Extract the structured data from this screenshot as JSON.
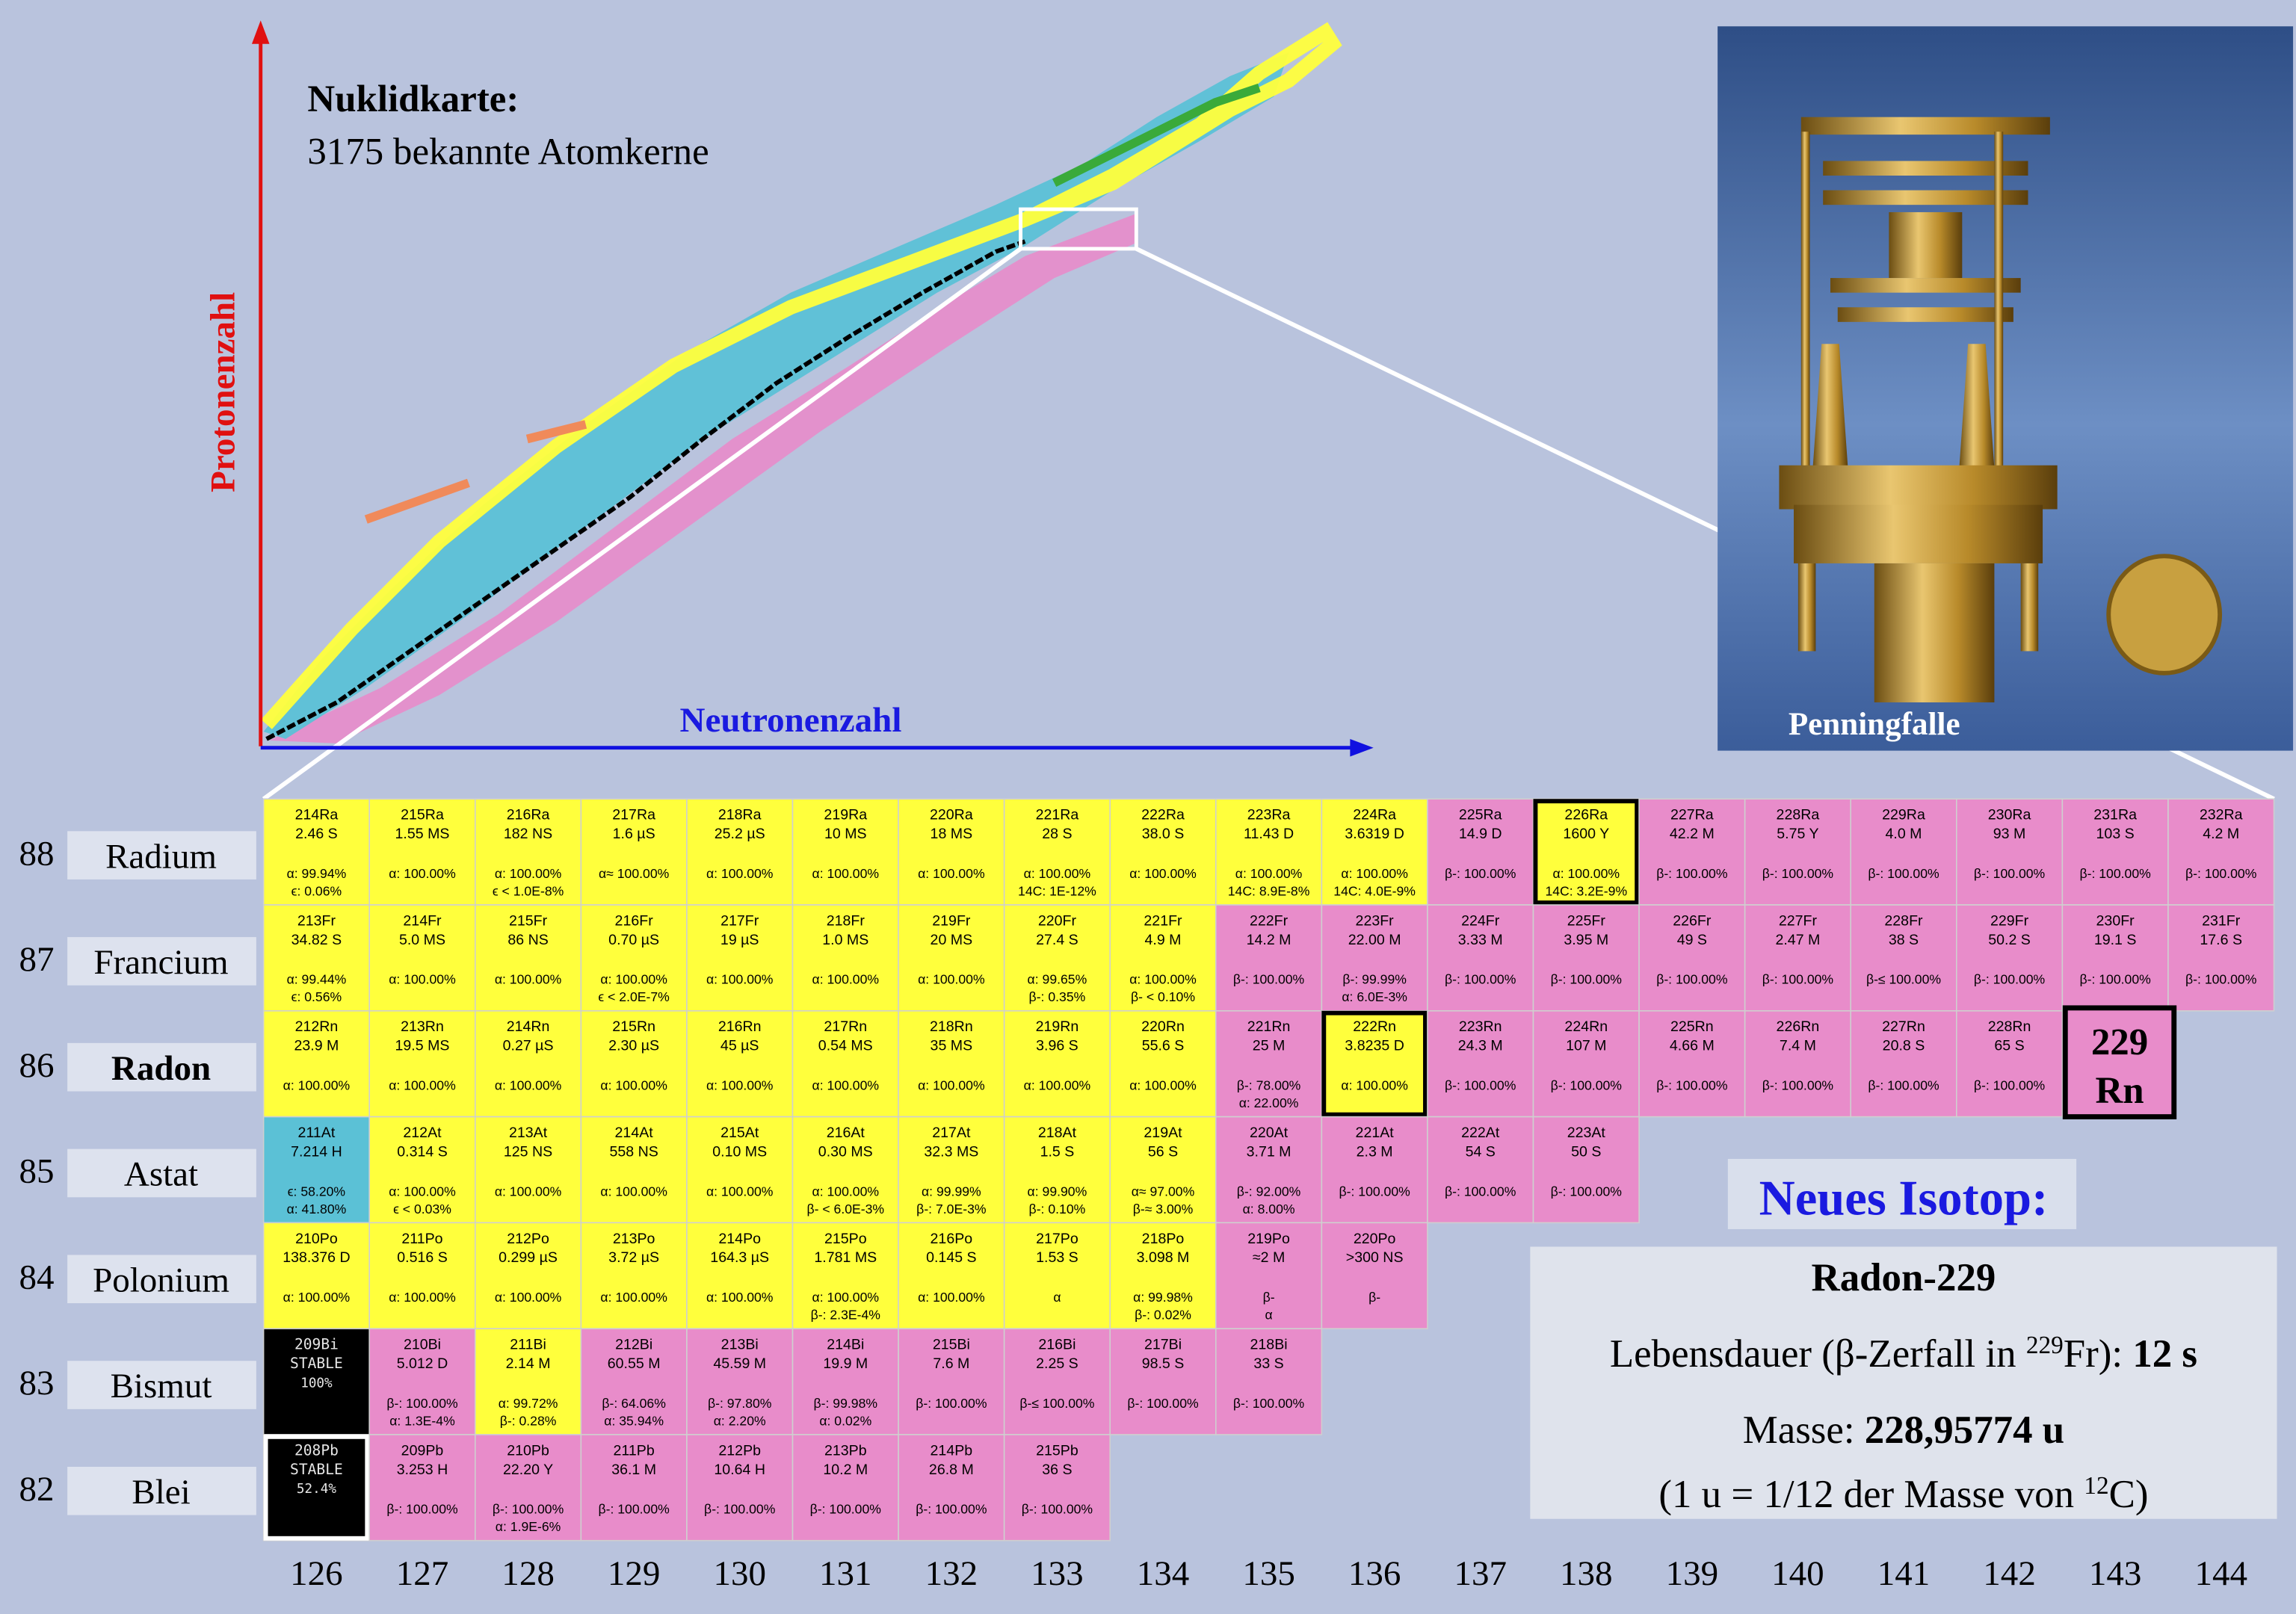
{
  "title": "Nuklidkarte:",
  "subtitle": "3175 bekannte Atomkerne",
  "y_axis_label": "Protonenzahl",
  "x_axis_label": "Neutronenzahl",
  "photo_label": "Penningfalle",
  "n_labels": [
    126,
    127,
    128,
    129,
    130,
    131,
    132,
    133,
    134,
    135,
    136,
    137,
    138,
    139,
    140,
    141,
    142,
    143,
    144
  ],
  "rows": [
    {
      "z": 88,
      "element": "Radium",
      "bold": false,
      "cells": [
        {
          "name": "214Ra",
          "halflife": "2.46 S",
          "decay": [
            "α: 99.94%",
            "ϵ: 0.06%"
          ],
          "color": "#ffff3c"
        },
        {
          "name": "215Ra",
          "halflife": "1.55 MS",
          "decay": [
            "α: 100.00%"
          ],
          "color": "#ffff3c"
        },
        {
          "name": "216Ra",
          "halflife": "182 NS",
          "decay": [
            "α: 100.00%",
            "ϵ < 1.0E-8%"
          ],
          "color": "#ffff3c"
        },
        {
          "name": "217Ra",
          "halflife": "1.6 µS",
          "decay": [
            "α≈ 100.00%"
          ],
          "color": "#ffff3c"
        },
        {
          "name": "218Ra",
          "halflife": "25.2 µS",
          "decay": [
            "α: 100.00%"
          ],
          "color": "#ffff3c"
        },
        {
          "name": "219Ra",
          "halflife": "10 MS",
          "decay": [
            "α: 100.00%"
          ],
          "color": "#ffff3c"
        },
        {
          "name": "220Ra",
          "halflife": "18 MS",
          "decay": [
            "α: 100.00%"
          ],
          "color": "#ffff3c"
        },
        {
          "name": "221Ra",
          "halflife": "28 S",
          "decay": [
            "α: 100.00%",
            "14C: 1E-12%"
          ],
          "color": "#ffff3c"
        },
        {
          "name": "222Ra",
          "halflife": "38.0 S",
          "decay": [
            "α: 100.00%"
          ],
          "color": "#ffff3c"
        },
        {
          "name": "223Ra",
          "halflife": "11.43 D",
          "decay": [
            "α: 100.00%",
            "14C: 8.9E-8%"
          ],
          "color": "#ffff3c"
        },
        {
          "name": "224Ra",
          "halflife": "3.6319 D",
          "decay": [
            "α: 100.00%",
            "14C: 4.0E-9%"
          ],
          "color": "#ffff3c"
        },
        {
          "name": "225Ra",
          "halflife": "14.9 D",
          "decay": [
            "β-: 100.00%"
          ],
          "color": "#e88cca"
        },
        {
          "name": "226Ra",
          "halflife": "1600 Y",
          "decay": [
            "α: 100.00%",
            "14C: 3.2E-9%"
          ],
          "color": "#ffff3c",
          "frame": "#000000"
        },
        {
          "name": "227Ra",
          "halflife": "42.2 M",
          "decay": [
            "β-: 100.00%"
          ],
          "color": "#e88cca"
        },
        {
          "name": "228Ra",
          "halflife": "5.75 Y",
          "decay": [
            "β-: 100.00%"
          ],
          "color": "#e88cca"
        },
        {
          "name": "229Ra",
          "halflife": "4.0 M",
          "decay": [
            "β-: 100.00%"
          ],
          "color": "#e88cca"
        },
        {
          "name": "230Ra",
          "halflife": "93 M",
          "decay": [
            "β-: 100.00%"
          ],
          "color": "#e88cca"
        },
        {
          "name": "231Ra",
          "halflife": "103 S",
          "decay": [
            "β-: 100.00%"
          ],
          "color": "#e88cca"
        },
        {
          "name": "232Ra",
          "halflife": "4.2 M",
          "decay": [
            "β-: 100.00%"
          ],
          "color": "#e88cca"
        }
      ]
    },
    {
      "z": 87,
      "element": "Francium",
      "bold": false,
      "cells": [
        {
          "name": "213Fr",
          "halflife": "34.82 S",
          "decay": [
            "α: 99.44%",
            "ϵ: 0.56%"
          ],
          "color": "#ffff3c"
        },
        {
          "name": "214Fr",
          "halflife": "5.0 MS",
          "decay": [
            "α: 100.00%"
          ],
          "color": "#ffff3c"
        },
        {
          "name": "215Fr",
          "halflife": "86 NS",
          "decay": [
            "α: 100.00%"
          ],
          "color": "#ffff3c"
        },
        {
          "name": "216Fr",
          "halflife": "0.70 µS",
          "decay": [
            "α: 100.00%",
            "ϵ < 2.0E-7%"
          ],
          "color": "#ffff3c"
        },
        {
          "name": "217Fr",
          "halflife": "19 µS",
          "decay": [
            "α: 100.00%"
          ],
          "color": "#ffff3c"
        },
        {
          "name": "218Fr",
          "halflife": "1.0 MS",
          "decay": [
            "α: 100.00%"
          ],
          "color": "#ffff3c"
        },
        {
          "name": "219Fr",
          "halflife": "20 MS",
          "decay": [
            "α: 100.00%"
          ],
          "color": "#ffff3c"
        },
        {
          "name": "220Fr",
          "halflife": "27.4 S",
          "decay": [
            "α: 99.65%",
            "β-: 0.35%"
          ],
          "color": "#ffff3c"
        },
        {
          "name": "221Fr",
          "halflife": "4.9 M",
          "decay": [
            "α: 100.00%",
            "β- < 0.10%"
          ],
          "color": "#ffff3c"
        },
        {
          "name": "222Fr",
          "halflife": "14.2 M",
          "decay": [
            "β-: 100.00%"
          ],
          "color": "#e88cca"
        },
        {
          "name": "223Fr",
          "halflife": "22.00 M",
          "decay": [
            "β-: 99.99%",
            "α: 6.0E-3%"
          ],
          "color": "#e88cca"
        },
        {
          "name": "224Fr",
          "halflife": "3.33 M",
          "decay": [
            "β-: 100.00%"
          ],
          "color": "#e88cca"
        },
        {
          "name": "225Fr",
          "halflife": "3.95 M",
          "decay": [
            "β-: 100.00%"
          ],
          "color": "#e88cca"
        },
        {
          "name": "226Fr",
          "halflife": "49 S",
          "decay": [
            "β-: 100.00%"
          ],
          "color": "#e88cca"
        },
        {
          "name": "227Fr",
          "halflife": "2.47 M",
          "decay": [
            "β-: 100.00%"
          ],
          "color": "#e88cca"
        },
        {
          "name": "228Fr",
          "halflife": "38 S",
          "decay": [
            "β-≤ 100.00%"
          ],
          "color": "#e88cca"
        },
        {
          "name": "229Fr",
          "halflife": "50.2 S",
          "decay": [
            "β-: 100.00%"
          ],
          "color": "#e88cca"
        },
        {
          "name": "230Fr",
          "halflife": "19.1 S",
          "decay": [
            "β-: 100.00%"
          ],
          "color": "#e88cca"
        },
        {
          "name": "231Fr",
          "halflife": "17.6 S",
          "decay": [
            "β-: 100.00%"
          ],
          "color": "#e88cca"
        }
      ]
    },
    {
      "z": 86,
      "element": "Radon",
      "bold": true,
      "cells": [
        {
          "name": "212Rn",
          "halflife": "23.9 M",
          "decay": [
            "α: 100.00%"
          ],
          "color": "#ffff3c"
        },
        {
          "name": "213Rn",
          "halflife": "19.5 MS",
          "decay": [
            "α: 100.00%"
          ],
          "color": "#ffff3c"
        },
        {
          "name": "214Rn",
          "halflife": "0.27 µS",
          "decay": [
            "α: 100.00%"
          ],
          "color": "#ffff3c"
        },
        {
          "name": "215Rn",
          "halflife": "2.30 µS",
          "decay": [
            "α: 100.00%"
          ],
          "color": "#ffff3c"
        },
        {
          "name": "216Rn",
          "halflife": "45 µS",
          "decay": [
            "α: 100.00%"
          ],
          "color": "#ffff3c"
        },
        {
          "name": "217Rn",
          "halflife": "0.54 MS",
          "decay": [
            "α: 100.00%"
          ],
          "color": "#ffff3c"
        },
        {
          "name": "218Rn",
          "halflife": "35 MS",
          "decay": [
            "α: 100.00%"
          ],
          "color": "#ffff3c"
        },
        {
          "name": "219Rn",
          "halflife": "3.96 S",
          "decay": [
            "α: 100.00%"
          ],
          "color": "#ffff3c"
        },
        {
          "name": "220Rn",
          "halflife": "55.6 S",
          "decay": [
            "α: 100.00%"
          ],
          "color": "#ffff3c"
        },
        {
          "name": "221Rn",
          "halflife": "25 M",
          "decay": [
            "β-: 78.00%",
            "α: 22.00%"
          ],
          "color": "#e88cca"
        },
        {
          "name": "222Rn",
          "halflife": "3.8235 D",
          "decay": [
            "α: 100.00%"
          ],
          "color": "#ffff3c",
          "frame": "#000000"
        },
        {
          "name": "223Rn",
          "halflife": "24.3 M",
          "decay": [
            "β-: 100.00%"
          ],
          "color": "#e88cca"
        },
        {
          "name": "224Rn",
          "halflife": "107 M",
          "decay": [
            "β-: 100.00%"
          ],
          "color": "#e88cca"
        },
        {
          "name": "225Rn",
          "halflife": "4.66 M",
          "decay": [
            "β-: 100.00%"
          ],
          "color": "#e88cca"
        },
        {
          "name": "226Rn",
          "halflife": "7.4 M",
          "decay": [
            "β-: 100.00%"
          ],
          "color": "#e88cca"
        },
        {
          "name": "227Rn",
          "halflife": "20.8 S",
          "decay": [
            "β-: 100.00%"
          ],
          "color": "#e88cca"
        },
        {
          "name": "228Rn",
          "halflife": "65 S",
          "decay": [
            "β-: 100.00%"
          ],
          "color": "#e88cca"
        },
        {
          "name": "229",
          "symbol": "Rn",
          "color": "#e88cca",
          "frame": "#000000"
        }
      ]
    },
    {
      "z": 85,
      "element": "Astat",
      "bold": false,
      "cells": [
        {
          "name": "211At",
          "halflife": "7.214 H",
          "decay": [
            "ϵ: 58.20%",
            "α: 41.80%"
          ],
          "color": "#5bc1d6"
        },
        {
          "name": "212At",
          "halflife": "0.314 S",
          "decay": [
            "α: 100.00%",
            "ϵ < 0.03%"
          ],
          "color": "#ffff3c"
        },
        {
          "name": "213At",
          "halflife": "125 NS",
          "decay": [
            "α: 100.00%"
          ],
          "color": "#ffff3c"
        },
        {
          "name": "214At",
          "halflife": "558 NS",
          "decay": [
            "α: 100.00%"
          ],
          "color": "#ffff3c"
        },
        {
          "name": "215At",
          "halflife": "0.10 MS",
          "decay": [
            "α: 100.00%"
          ],
          "color": "#ffff3c"
        },
        {
          "name": "216At",
          "halflife": "0.30 MS",
          "decay": [
            "α: 100.00%",
            "β- < 6.0E-3%"
          ],
          "color": "#ffff3c"
        },
        {
          "name": "217At",
          "halflife": "32.3 MS",
          "decay": [
            "α: 99.99%",
            "β-: 7.0E-3%"
          ],
          "color": "#ffff3c"
        },
        {
          "name": "218At",
          "halflife": "1.5 S",
          "decay": [
            "α: 99.90%",
            "β-: 0.10%"
          ],
          "color": "#ffff3c"
        },
        {
          "name": "219At",
          "halflife": "56 S",
          "decay": [
            "α≈ 97.00%",
            "β-≈ 3.00%"
          ],
          "color": "#ffff3c"
        },
        {
          "name": "220At",
          "halflife": "3.71 M",
          "decay": [
            "β-: 92.00%",
            "α: 8.00%"
          ],
          "color": "#e88cca"
        },
        {
          "name": "221At",
          "halflife": "2.3 M",
          "decay": [
            "β-: 100.00%"
          ],
          "color": "#e88cca"
        },
        {
          "name": "222At",
          "halflife": "54 S",
          "decay": [
            "β-: 100.00%"
          ],
          "color": "#e88cca"
        },
        {
          "name": "223At",
          "halflife": "50 S",
          "decay": [
            "β-: 100.00%"
          ],
          "color": "#e88cca"
        }
      ]
    },
    {
      "z": 84,
      "element": "Polonium",
      "bold": false,
      "cells": [
        {
          "name": "210Po",
          "halflife": "138.376 D",
          "decay": [
            "α: 100.00%"
          ],
          "color": "#ffff3c"
        },
        {
          "name": "211Po",
          "halflife": "0.516 S",
          "decay": [
            "α: 100.00%"
          ],
          "color": "#ffff3c"
        },
        {
          "name": "212Po",
          "halflife": "0.299 µS",
          "decay": [
            "α: 100.00%"
          ],
          "color": "#ffff3c"
        },
        {
          "name": "213Po",
          "halflife": "3.72 µS",
          "decay": [
            "α: 100.00%"
          ],
          "color": "#ffff3c"
        },
        {
          "name": "214Po",
          "halflife": "164.3 µS",
          "decay": [
            "α: 100.00%"
          ],
          "color": "#ffff3c"
        },
        {
          "name": "215Po",
          "halflife": "1.781 MS",
          "decay": [
            "α: 100.00%",
            "β-: 2.3E-4%"
          ],
          "color": "#ffff3c"
        },
        {
          "name": "216Po",
          "halflife": "0.145 S",
          "decay": [
            "α: 100.00%"
          ],
          "color": "#ffff3c"
        },
        {
          "name": "217Po",
          "halflife": "1.53 S",
          "decay": [
            "α"
          ],
          "color": "#ffff3c"
        },
        {
          "name": "218Po",
          "halflife": "3.098 M",
          "decay": [
            "α: 99.98%",
            "β-: 0.02%"
          ],
          "color": "#ffff3c"
        },
        {
          "name": "219Po",
          "halflife": "≈2 M",
          "decay": [
            "β-",
            "α"
          ],
          "color": "#e88cca"
        },
        {
          "name": "220Po",
          "halflife": ">300 NS",
          "decay": [
            "β-"
          ],
          "color": "#e88cca"
        }
      ]
    },
    {
      "z": 83,
      "element": "Bismut",
      "bold": false,
      "cells": [
        {
          "name": "209Bi",
          "halflife": "STABLE",
          "decay": [
            "100%"
          ],
          "color": "#000000"
        },
        {
          "name": "210Bi",
          "halflife": "5.012 D",
          "decay": [
            "β-: 100.00%",
            "α: 1.3E-4%"
          ],
          "color": "#e88cca"
        },
        {
          "name": "211Bi",
          "halflife": "2.14 M",
          "decay": [
            "α: 99.72%",
            "β-: 0.28%"
          ],
          "color": "#ffff3c"
        },
        {
          "name": "212Bi",
          "halflife": "60.55 M",
          "decay": [
            "β-: 64.06%",
            "α: 35.94%"
          ],
          "color": "#e88cca"
        },
        {
          "name": "213Bi",
          "halflife": "45.59 M",
          "decay": [
            "β-: 97.80%",
            "α: 2.20%"
          ],
          "color": "#e88cca"
        },
        {
          "name": "214Bi",
          "halflife": "19.9 M",
          "decay": [
            "β-: 99.98%",
            "α: 0.02%"
          ],
          "color": "#e88cca"
        },
        {
          "name": "215Bi",
          "halflife": "7.6 M",
          "decay": [
            "β-: 100.00%"
          ],
          "color": "#e88cca"
        },
        {
          "name": "216Bi",
          "halflife": "2.25 S",
          "decay": [
            "β-≤ 100.00%"
          ],
          "color": "#e88cca"
        },
        {
          "name": "217Bi",
          "halflife": "98.5 S",
          "decay": [
            "β-: 100.00%"
          ],
          "color": "#e88cca"
        },
        {
          "name": "218Bi",
          "halflife": "33 S",
          "decay": [
            "β-: 100.00%"
          ],
          "color": "#e88cca"
        }
      ]
    },
    {
      "z": 82,
      "element": "Blei",
      "bold": false,
      "cells": [
        {
          "name": "208Pb",
          "halflife": "STABLE",
          "decay": [
            "52.4%"
          ],
          "color": "#000000",
          "frame": "#ffffff"
        },
        {
          "name": "209Pb",
          "halflife": "3.253 H",
          "decay": [
            "β-: 100.00%"
          ],
          "color": "#e88cca"
        },
        {
          "name": "210Pb",
          "halflife": "22.20 Y",
          "decay": [
            "β-: 100.00%",
            "α: 1.9E-6%"
          ],
          "color": "#e88cca"
        },
        {
          "name": "211Pb",
          "halflife": "36.1 M",
          "decay": [
            "β-: 100.00%"
          ],
          "color": "#e88cca"
        },
        {
          "name": "212Pb",
          "halflife": "10.64 H",
          "decay": [
            "β-: 100.00%"
          ],
          "color": "#e88cca"
        },
        {
          "name": "213Pb",
          "halflife": "10.2 M",
          "decay": [
            "β-: 100.00%"
          ],
          "color": "#e88cca"
        },
        {
          "name": "214Pb",
          "halflife": "26.8 M",
          "decay": [
            "β-: 100.00%"
          ],
          "color": "#e88cca"
        },
        {
          "name": "215Pb",
          "halflife": "36 S",
          "decay": [
            "β-: 100.00%"
          ],
          "color": "#e88cca"
        }
      ]
    }
  ],
  "info": {
    "heading": "Neues Isotop:",
    "isotope": "Radon-229",
    "lifetime": [
      "Lebensdauer (β-Zerfall in ",
      "229",
      "Fr): ",
      "12 s"
    ],
    "mass": [
      "Masse: ",
      "228,95774 u"
    ],
    "unit": [
      "(1 u = 1/12 der Masse von ",
      "12",
      "C)"
    ]
  }
}
